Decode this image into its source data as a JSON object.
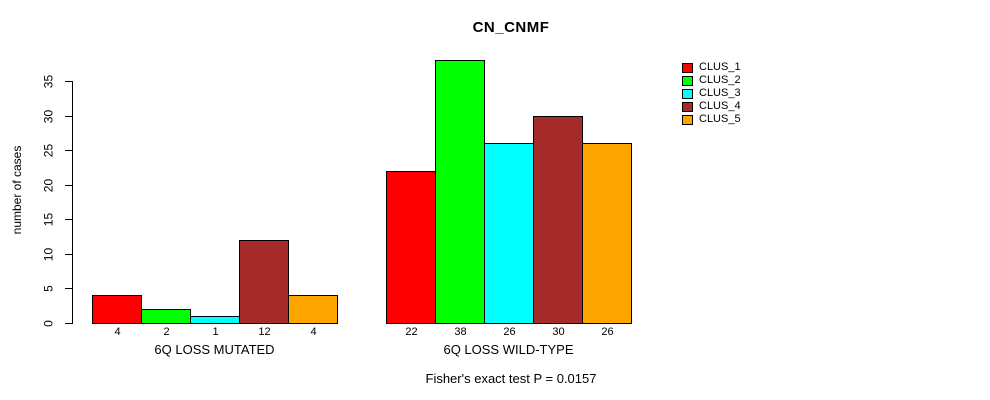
{
  "chart_data": {
    "type": "bar",
    "title": "CN_CNMF",
    "ylabel": "number of cases",
    "ylim": [
      0,
      35
    ],
    "yticks": [
      0,
      5,
      10,
      15,
      20,
      25,
      30,
      35
    ],
    "grid": false,
    "legend_position": "top-right",
    "bar_value_labels": true,
    "categories": [
      "6Q LOSS MUTATED",
      "6Q LOSS WILD-TYPE"
    ],
    "series": [
      {
        "name": "CLUS_1",
        "color": "#FF0000",
        "values": [
          4,
          22
        ]
      },
      {
        "name": "CLUS_2",
        "color": "#00FF00",
        "values": [
          2,
          38
        ]
      },
      {
        "name": "CLUS_3",
        "color": "#00FFFF",
        "values": [
          1,
          26
        ]
      },
      {
        "name": "CLUS_4",
        "color": "#A52A2A",
        "values": [
          12,
          30
        ]
      },
      {
        "name": "CLUS_5",
        "color": "#FFA500",
        "values": [
          4,
          26
        ]
      }
    ],
    "footnote": "Fisher's exact test P = 0.0157"
  }
}
